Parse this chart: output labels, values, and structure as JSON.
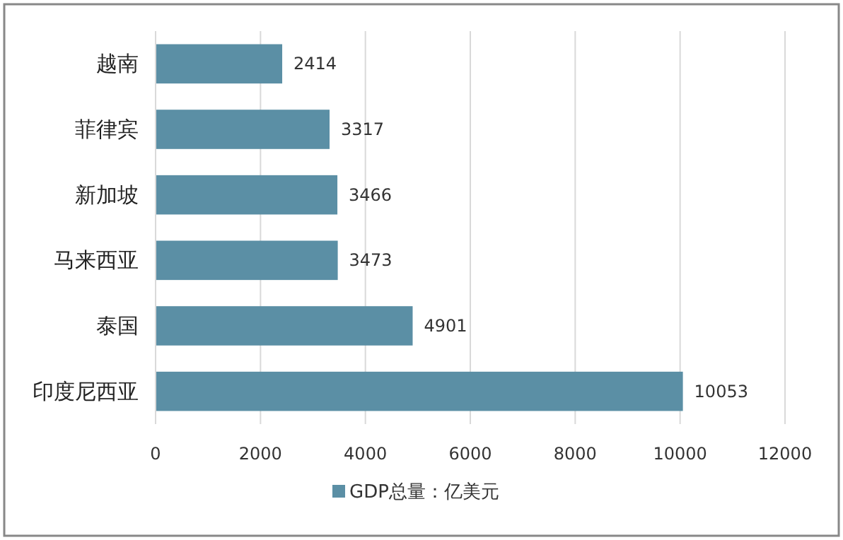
{
  "chart_data": {
    "type": "bar",
    "orientation": "horizontal",
    "categories": [
      "越南",
      "菲律宾",
      "新加坡",
      "马来西亚",
      "泰国",
      "印度尼西亚"
    ],
    "series": [
      {
        "name": "GDP总量：亿美元",
        "color": "#5b8fa5",
        "values": [
          2414,
          3317,
          3466,
          3473,
          4901,
          10053
        ]
      }
    ],
    "xlim": [
      0,
      12000
    ],
    "xticks": [
      0,
      2000,
      4000,
      6000,
      8000,
      10000,
      12000
    ],
    "grid": "x",
    "legend": "bottom",
    "data_labels": true
  }
}
